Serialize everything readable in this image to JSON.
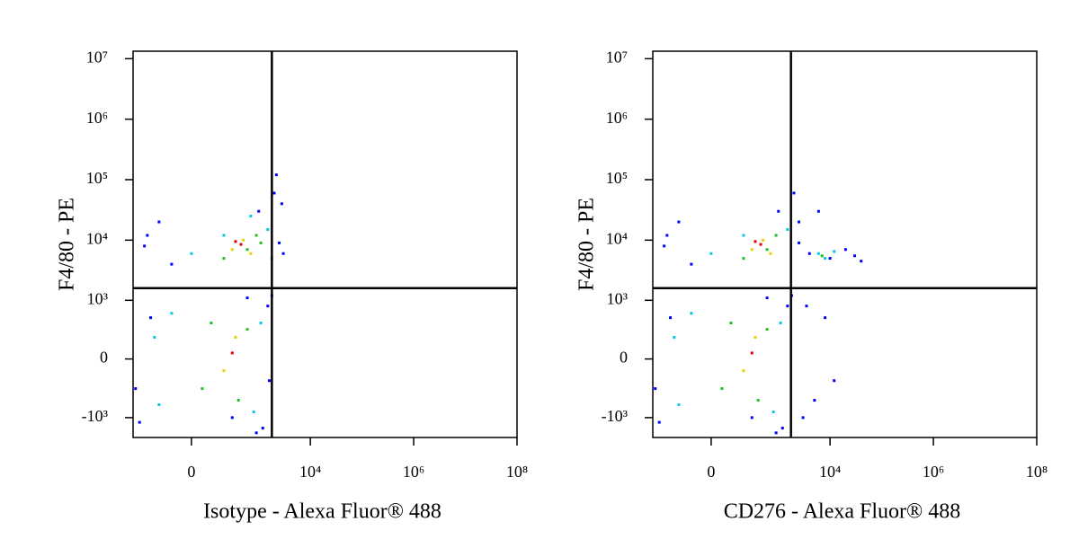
{
  "chart_data": [
    {
      "type": "scatter",
      "x_label": "Isotype - Alexa Fluor® 488",
      "y_label": "F4/80 - PE",
      "xscale": "biexponential",
      "yscale": "biexponential",
      "xlim": [
        -670,
        100000000
      ],
      "ylim": [
        -2150,
        13300000
      ],
      "xticks": [
        0,
        {
          "value": 10000,
          "label": "10⁴"
        },
        {
          "value": 1000000,
          "label": "10⁶"
        },
        {
          "value": 100000000,
          "label": "10⁸"
        }
      ],
      "yticks": [
        {
          "value": -1000,
          "label": "-10³"
        },
        0,
        {
          "value": 1000,
          "label": "10³"
        },
        {
          "value": 10000,
          "label": "10⁴"
        },
        {
          "value": 100000,
          "label": "10⁵"
        },
        {
          "value": 1000000,
          "label": "10⁶"
        },
        {
          "value": 10000000,
          "label": "10⁷"
        }
      ],
      "quadrant": {
        "x": 1800,
        "y": 1600
      },
      "series": [
        {
          "color": "#0000ff",
          "x": [
            -500,
            -300,
            1200,
            1500,
            -400,
            2500,
            2000,
            -200,
            3000,
            1800,
            -600,
            900,
            300,
            1600,
            -100,
            1000,
            2200,
            -350,
            600,
            2800
          ],
          "y": [
            -1200,
            500,
            -1500,
            800,
            8000,
            9000,
            60000,
            20000,
            6000,
            1200,
            -300,
            -1800,
            -1000,
            -200,
            4000,
            30000,
            120000,
            12000,
            1100,
            40000
          ]
        },
        {
          "color": "#00c8e8",
          "x": [
            -200,
            800,
            1100,
            -100,
            0,
            1500,
            200,
            1800,
            -250,
            700
          ],
          "y": [
            -600,
            -800,
            400,
            600,
            6000,
            15000,
            12000,
            5000,
            200,
            25000
          ]
        },
        {
          "color": "#20c020",
          "x": [
            50,
            400,
            600,
            100,
            200,
            900,
            600,
            1100
          ],
          "y": [
            -300,
            -500,
            300,
            400,
            5000,
            12000,
            7000,
            9000
          ]
        },
        {
          "color": "#e8d000",
          "x": [
            200,
            350,
            500,
            300,
            700
          ],
          "y": [
            -100,
            200,
            10000,
            7000,
            6000
          ]
        },
        {
          "color": "#e00000",
          "x": [
            300,
            450,
            350
          ],
          "y": [
            50,
            8500,
            9500
          ]
        }
      ]
    },
    {
      "type": "scatter",
      "x_label": "CD276 - Alexa Fluor® 488",
      "y_label": "F4/80 - PE",
      "xscale": "biexponential",
      "yscale": "biexponential",
      "xlim": [
        -670,
        100000000
      ],
      "ylim": [
        -2150,
        13300000
      ],
      "xticks": [
        0,
        {
          "value": 10000,
          "label": "10⁴"
        },
        {
          "value": 1000000,
          "label": "10⁶"
        },
        {
          "value": 100000000,
          "label": "10⁸"
        }
      ],
      "yticks": [
        {
          "value": -1000,
          "label": "-10³"
        },
        0,
        {
          "value": 1000,
          "label": "10³"
        },
        {
          "value": 10000,
          "label": "10⁴"
        },
        {
          "value": 100000,
          "label": "10⁵"
        },
        {
          "value": 1000000,
          "label": "10⁶"
        },
        {
          "value": 10000000,
          "label": "10⁷"
        }
      ],
      "quadrant": {
        "x": 1750,
        "y": 1600
      },
      "series": [
        {
          "color": "#0000ff",
          "x": [
            -500,
            -300,
            1200,
            1500,
            -400,
            2500,
            2000,
            -200,
            1800,
            -600,
            900,
            300,
            -100,
            1000,
            -350,
            600,
            4000,
            10000,
            20000,
            30000,
            5000,
            8000,
            3000,
            12000,
            2500,
            6000,
            40000,
            3500
          ],
          "y": [
            -1200,
            500,
            -1500,
            800,
            8000,
            9000,
            60000,
            20000,
            1200,
            -300,
            -1800,
            -1000,
            4000,
            30000,
            12000,
            1100,
            6000,
            5000,
            7000,
            5500,
            -500,
            500,
            -1000,
            -200,
            20000,
            30000,
            4500,
            800
          ]
        },
        {
          "color": "#00c8e8",
          "x": [
            -200,
            800,
            1100,
            -100,
            0,
            1500,
            200,
            -250,
            6000,
            12000,
            8000
          ],
          "y": [
            -600,
            -800,
            400,
            600,
            6000,
            15000,
            12000,
            200,
            6000,
            6500,
            5000
          ]
        },
        {
          "color": "#20c020",
          "x": [
            50,
            400,
            600,
            100,
            200,
            900,
            600,
            7000
          ],
          "y": [
            -300,
            -500,
            300,
            400,
            5000,
            12000,
            7000,
            5500
          ]
        },
        {
          "color": "#e8d000",
          "x": [
            200,
            350,
            500,
            300,
            700
          ],
          "y": [
            -100,
            200,
            10000,
            7000,
            6000
          ]
        },
        {
          "color": "#e00000",
          "x": [
            300,
            450,
            350
          ],
          "y": [
            50,
            8500,
            9500
          ]
        }
      ]
    }
  ]
}
